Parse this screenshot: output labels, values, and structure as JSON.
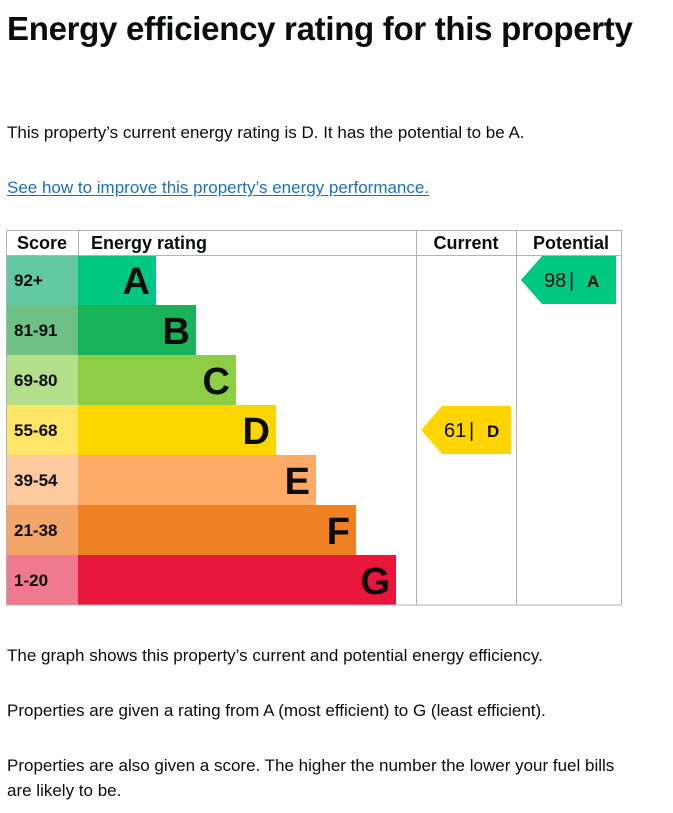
{
  "heading": "Energy efficiency rating for this property",
  "summary": "This property’s current energy rating is D. It has the potential to be A.",
  "improve_link": "See how to improve this property’s energy performance.",
  "chart_data": {
    "type": "table",
    "columns": {
      "score": "Score",
      "rating": "Energy rating",
      "current": "Current",
      "potential": "Potential"
    },
    "bands": [
      {
        "letter": "A",
        "range": "92+",
        "color": "#00c781",
        "score_color": "#62c9a2"
      },
      {
        "letter": "B",
        "range": "81-91",
        "color": "#19b459",
        "score_color": "#6ec184"
      },
      {
        "letter": "C",
        "range": "69-80",
        "color": "#8dce46",
        "score_color": "#b3de8a"
      },
      {
        "letter": "D",
        "range": "55-68",
        "color": "#ffd500",
        "score_color": "#ffe666"
      },
      {
        "letter": "E",
        "range": "39-54",
        "color": "#fcaa65",
        "score_color": "#fdc99e"
      },
      {
        "letter": "F",
        "range": "21-38",
        "color": "#ef8023",
        "score_color": "#f3a56a"
      },
      {
        "letter": "G",
        "range": "1-20",
        "color": "#e9153b",
        "score_color": "#ef7a90"
      }
    ],
    "current": {
      "score": 61,
      "letter": "D",
      "color": "#ffd500"
    },
    "potential": {
      "score": 98,
      "letter": "A",
      "color": "#00c781"
    }
  },
  "explanations": [
    "The graph shows this property’s current and potential energy efficiency.",
    "Properties are given a rating from A (most efficient) to G (least efficient).",
    "Properties are also given a score. The higher the number the lower your fuel bills are likely to be."
  ]
}
